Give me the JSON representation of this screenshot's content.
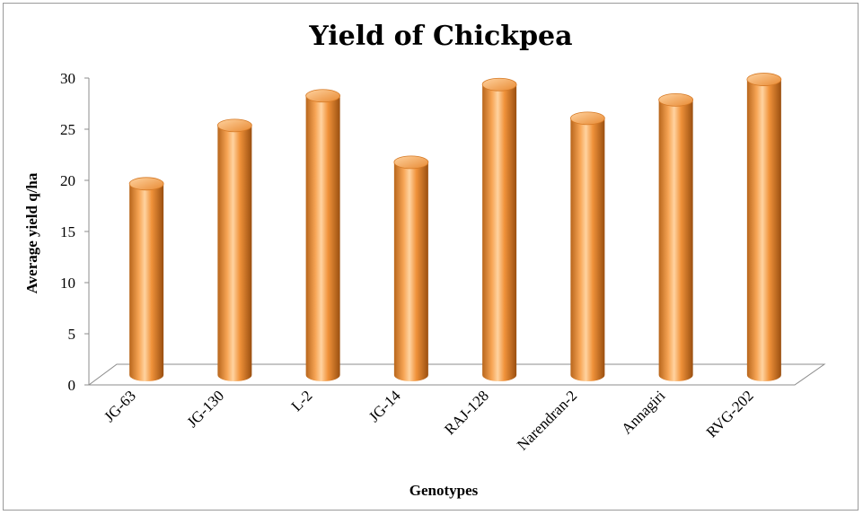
{
  "chart_data": {
    "type": "bar",
    "style": "3d-cylinder",
    "title": "Yield of Chickpea",
    "xlabel": "Genotypes",
    "ylabel": "Average yield q/ha",
    "categories": [
      "JG-63",
      "JG-130",
      "L-2",
      "JG-14",
      "RAJ-128",
      "Narendran-2",
      "Annagiri",
      "RVG-202"
    ],
    "values": [
      18.7,
      24.4,
      27.3,
      20.8,
      28.4,
      25.1,
      26.9,
      28.9
    ],
    "ylim": [
      0,
      30
    ],
    "yticks": [
      "0",
      "5",
      "10",
      "15",
      "20",
      "25",
      "30"
    ],
    "grid": false,
    "legend": "none",
    "colors": {
      "bar": "#f0923a",
      "bar_dark": "#a85812",
      "bar_light": "#ffc98a",
      "bar_top": "#f7a452"
    }
  }
}
